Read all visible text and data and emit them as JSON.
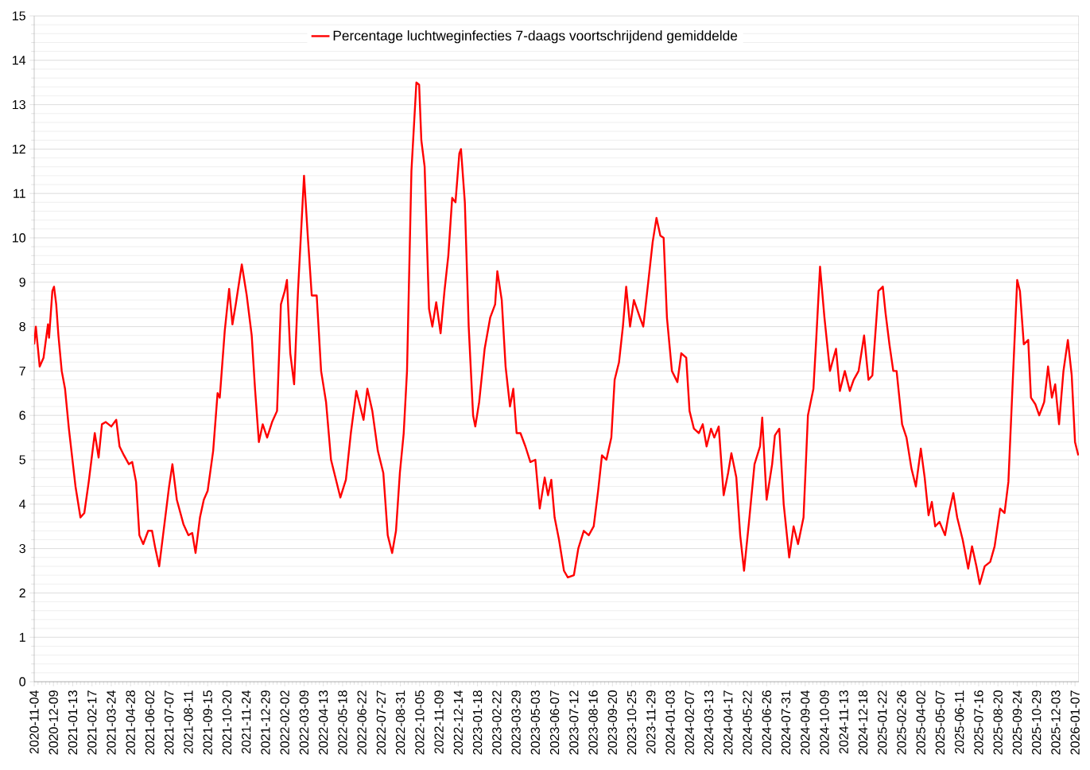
{
  "chart_data": {
    "type": "line",
    "xlim": [
      "2020-11-04",
      "2026-01-14"
    ],
    "ylim": [
      0,
      15
    ],
    "yticks": [
      0,
      1,
      2,
      3,
      4,
      5,
      6,
      7,
      8,
      9,
      10,
      11,
      12,
      13,
      14,
      15
    ],
    "xticks": [
      "2020-11-04",
      "2020-12-09",
      "2021-01-13",
      "2021-02-17",
      "2021-03-24",
      "2021-04-28",
      "2021-06-02",
      "2021-07-07",
      "2021-08-11",
      "2021-09-15",
      "2021-10-20",
      "2021-11-24",
      "2021-12-29",
      "2022-02-02",
      "2022-03-09",
      "2022-04-13",
      "2022-05-18",
      "2022-06-22",
      "2022-07-27",
      "2022-08-31",
      "2022-10-05",
      "2022-11-09",
      "2022-12-14",
      "2023-01-18",
      "2023-02-22",
      "2023-03-29",
      "2023-05-03",
      "2023-06-07",
      "2023-07-12",
      "2023-08-16",
      "2023-09-20",
      "2023-10-25",
      "2023-11-29",
      "2024-01-03",
      "2024-02-07",
      "2024-03-13",
      "2024-04-17",
      "2024-05-22",
      "2024-06-26",
      "2024-07-31",
      "2024-09-04",
      "2024-10-09",
      "2024-11-13",
      "2024-12-18",
      "2025-01-22",
      "2025-02-26",
      "2025-04-02",
      "2025-05-07",
      "2025-06-11",
      "2025-07-16",
      "2025-08-20",
      "2025-09-24",
      "2025-10-29",
      "2025-12-03",
      "2026-01-07"
    ],
    "x": [
      "2020-11-04",
      "2020-11-07",
      "2020-11-14",
      "2020-11-21",
      "2020-11-29",
      "2020-12-01",
      "2020-12-07",
      "2020-12-10",
      "2020-12-14",
      "2020-12-18",
      "2020-12-24",
      "2020-12-30",
      "2021-01-06",
      "2021-01-18",
      "2021-01-27",
      "2021-02-03",
      "2021-02-11",
      "2021-02-17",
      "2021-02-22",
      "2021-03-01",
      "2021-03-07",
      "2021-03-14",
      "2021-03-24",
      "2021-04-02",
      "2021-04-08",
      "2021-04-16",
      "2021-04-25",
      "2021-05-01",
      "2021-05-08",
      "2021-05-14",
      "2021-05-21",
      "2021-05-30",
      "2021-06-06",
      "2021-06-12",
      "2021-06-19",
      "2021-06-26",
      "2021-07-07",
      "2021-07-13",
      "2021-07-21",
      "2021-08-02",
      "2021-08-11",
      "2021-08-18",
      "2021-08-24",
      "2021-09-01",
      "2021-09-08",
      "2021-09-15",
      "2021-09-25",
      "2021-10-03",
      "2021-10-07",
      "2021-10-16",
      "2021-10-24",
      "2021-10-30",
      "2021-11-05",
      "2021-11-16",
      "2021-11-25",
      "2021-12-04",
      "2021-12-10",
      "2021-12-17",
      "2021-12-24",
      "2022-01-01",
      "2022-01-10",
      "2022-01-19",
      "2022-01-26",
      "2022-02-02",
      "2022-02-06",
      "2022-02-12",
      "2022-02-19",
      "2022-02-26",
      "2022-03-09",
      "2022-03-16",
      "2022-03-23",
      "2022-04-01",
      "2022-04-09",
      "2022-04-18",
      "2022-04-27",
      "2022-05-04",
      "2022-05-14",
      "2022-05-24",
      "2022-06-02",
      "2022-06-12",
      "2022-06-25",
      "2022-07-02",
      "2022-07-11",
      "2022-07-21",
      "2022-07-31",
      "2022-08-08",
      "2022-08-16",
      "2022-08-23",
      "2022-08-30",
      "2022-09-06",
      "2022-09-12",
      "2022-09-20",
      "2022-09-29",
      "2022-10-04",
      "2022-10-08",
      "2022-10-14",
      "2022-10-22",
      "2022-10-28",
      "2022-11-04",
      "2022-11-12",
      "2022-11-19",
      "2022-11-26",
      "2022-12-03",
      "2022-12-09",
      "2022-12-16",
      "2022-12-19",
      "2022-12-26",
      "2023-01-02",
      "2023-01-10",
      "2023-01-14",
      "2023-01-21",
      "2023-01-31",
      "2023-02-10",
      "2023-02-19",
      "2023-02-23",
      "2023-03-03",
      "2023-03-10",
      "2023-03-18",
      "2023-03-24",
      "2023-03-30",
      "2023-04-06",
      "2023-04-15",
      "2023-04-24",
      "2023-05-03",
      "2023-05-11",
      "2023-05-20",
      "2023-05-26",
      "2023-06-01",
      "2023-06-07",
      "2023-06-15",
      "2023-06-24",
      "2023-07-01",
      "2023-07-12",
      "2023-07-20",
      "2023-07-30",
      "2023-08-08",
      "2023-08-17",
      "2023-08-25",
      "2023-09-01",
      "2023-09-09",
      "2023-09-18",
      "2023-09-24",
      "2023-10-02",
      "2023-10-09",
      "2023-10-15",
      "2023-10-22",
      "2023-10-29",
      "2023-11-09",
      "2023-11-15",
      "2023-11-24",
      "2023-12-02",
      "2023-12-09",
      "2023-12-16",
      "2023-12-22",
      "2023-12-28",
      "2024-01-06",
      "2024-01-16",
      "2024-01-23",
      "2024-02-01",
      "2024-02-07",
      "2024-02-15",
      "2024-02-24",
      "2024-03-02",
      "2024-03-09",
      "2024-03-17",
      "2024-03-23",
      "2024-03-31",
      "2024-04-09",
      "2024-04-17",
      "2024-04-23",
      "2024-05-02",
      "2024-05-09",
      "2024-05-16",
      "2024-05-25",
      "2024-06-04",
      "2024-06-14",
      "2024-06-18",
      "2024-06-26",
      "2024-07-06",
      "2024-07-11",
      "2024-07-19",
      "2024-07-27",
      "2024-08-06",
      "2024-08-14",
      "2024-08-22",
      "2024-09-01",
      "2024-09-09",
      "2024-09-19",
      "2024-09-24",
      "2024-10-01",
      "2024-10-09",
      "2024-10-19",
      "2024-10-30",
      "2024-11-06",
      "2024-11-15",
      "2024-11-24",
      "2024-12-01",
      "2024-12-10",
      "2024-12-20",
      "2024-12-28",
      "2025-01-04",
      "2025-01-15",
      "2025-01-23",
      "2025-01-28",
      "2025-02-04",
      "2025-02-11",
      "2025-02-17",
      "2025-02-27",
      "2025-03-07",
      "2025-03-16",
      "2025-03-24",
      "2025-04-02",
      "2025-04-09",
      "2025-04-16",
      "2025-04-22",
      "2025-04-28",
      "2025-05-06",
      "2025-05-16",
      "2025-05-23",
      "2025-05-31",
      "2025-06-07",
      "2025-06-17",
      "2025-06-27",
      "2025-07-04",
      "2025-07-12",
      "2025-07-18",
      "2025-07-27",
      "2025-08-06",
      "2025-08-14",
      "2025-08-24",
      "2025-09-01",
      "2025-09-08",
      "2025-09-15",
      "2025-09-24",
      "2025-09-29",
      "2025-10-06",
      "2025-10-14",
      "2025-10-19",
      "2025-10-27",
      "2025-11-03",
      "2025-11-12",
      "2025-11-19",
      "2025-11-26",
      "2025-12-02",
      "2025-12-09",
      "2025-12-17",
      "2025-12-25",
      "2026-01-01",
      "2026-01-07",
      "2026-01-13"
    ],
    "series": [
      {
        "name": "Percentage luchtweginfecties 7-daags voortschrijdend gemiddelde",
        "color": "#ff0000",
        "values": [
          7.6,
          8.0,
          7.1,
          7.3,
          8.05,
          7.75,
          8.8,
          8.9,
          8.5,
          7.8,
          7.0,
          6.6,
          5.7,
          4.4,
          3.7,
          3.8,
          4.5,
          5.1,
          5.6,
          5.05,
          5.8,
          5.85,
          5.75,
          5.9,
          5.3,
          5.1,
          4.9,
          4.95,
          4.5,
          3.3,
          3.1,
          3.4,
          3.4,
          3.0,
          2.6,
          3.3,
          4.4,
          4.9,
          4.1,
          3.55,
          3.3,
          3.35,
          2.9,
          3.7,
          4.1,
          4.3,
          5.2,
          6.5,
          6.4,
          7.9,
          8.85,
          8.05,
          8.5,
          9.4,
          8.7,
          7.8,
          6.6,
          5.4,
          5.8,
          5.5,
          5.85,
          6.1,
          8.5,
          8.8,
          9.05,
          7.4,
          6.7,
          8.8,
          11.4,
          10.0,
          8.7,
          8.7,
          7.0,
          6.3,
          5.0,
          4.65,
          4.15,
          4.55,
          5.6,
          6.55,
          5.9,
          6.6,
          6.1,
          5.2,
          4.7,
          3.3,
          2.9,
          3.4,
          4.7,
          5.6,
          7.0,
          11.5,
          13.5,
          13.45,
          12.2,
          11.6,
          8.4,
          8.0,
          8.55,
          7.85,
          8.8,
          9.6,
          10.9,
          10.8,
          11.9,
          12.0,
          10.8,
          8.0,
          6.0,
          5.75,
          6.3,
          7.5,
          8.2,
          8.5,
          9.25,
          8.6,
          7.1,
          6.2,
          6.6,
          5.6,
          5.6,
          5.3,
          4.95,
          5.0,
          3.9,
          4.6,
          4.2,
          4.55,
          3.7,
          3.2,
          2.5,
          2.35,
          2.4,
          3.0,
          3.4,
          3.3,
          3.5,
          4.3,
          5.1,
          5.0,
          5.5,
          6.8,
          7.2,
          8.0,
          8.9,
          8.0,
          8.6,
          8.2,
          8.0,
          9.0,
          9.9,
          10.45,
          10.05,
          10.0,
          8.2,
          7.0,
          6.75,
          7.4,
          7.3,
          6.1,
          5.7,
          5.6,
          5.8,
          5.3,
          5.7,
          5.5,
          5.75,
          4.2,
          4.7,
          5.15,
          4.6,
          3.3,
          2.5,
          3.6,
          4.9,
          5.3,
          5.95,
          4.1,
          4.9,
          5.55,
          5.7,
          4.0,
          2.8,
          3.5,
          3.1,
          3.7,
          6.0,
          6.6,
          7.7,
          9.35,
          8.2,
          7.0,
          7.5,
          6.55,
          7.0,
          6.55,
          6.8,
          7.0,
          7.8,
          6.8,
          6.9,
          8.8,
          8.9,
          8.3,
          7.6,
          7.0,
          7.0,
          5.8,
          5.5,
          4.8,
          4.4,
          5.25,
          4.6,
          3.75,
          4.05,
          3.5,
          3.6,
          3.3,
          3.8,
          4.25,
          3.7,
          3.2,
          2.55,
          3.05,
          2.6,
          2.2,
          2.6,
          2.7,
          3.05,
          3.9,
          3.8,
          4.5,
          6.5,
          9.05,
          8.8,
          7.6,
          7.7,
          6.4,
          6.25,
          6.0,
          6.3,
          7.1,
          6.4,
          6.7,
          5.8,
          7.0,
          7.7,
          6.9,
          5.4,
          5.1
        ]
      }
    ],
    "grid": "y",
    "legend": "top",
    "marker": "none",
    "line_style": "solid"
  }
}
